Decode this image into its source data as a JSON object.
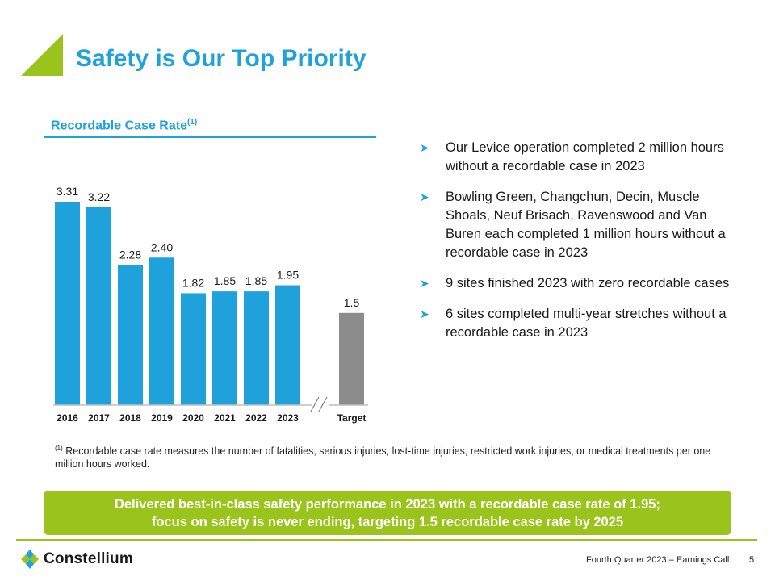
{
  "header": {
    "title": "Safety is Our Top Priority",
    "colors": {
      "brand_blue": "#1fa1dc",
      "brand_green": "#9ac31c",
      "target_gray": "#8c8c8c"
    }
  },
  "chart_title": {
    "text": "Recordable Case Rate",
    "superscript": "(1)"
  },
  "chart_data": {
    "type": "bar",
    "title": "Recordable Case Rate",
    "categories": [
      "2016",
      "2017",
      "2018",
      "2019",
      "2020",
      "2021",
      "2022",
      "2023",
      "Target"
    ],
    "values": [
      3.31,
      3.22,
      2.28,
      2.4,
      1.82,
      1.85,
      1.85,
      1.95,
      1.5
    ],
    "value_labels": [
      "3.31",
      "3.22",
      "2.28",
      "2.40",
      "1.82",
      "1.85",
      "1.85",
      "1.95",
      "1.5"
    ],
    "series_colors": [
      "#1fa1dc",
      "#1fa1dc",
      "#1fa1dc",
      "#1fa1dc",
      "#1fa1dc",
      "#1fa1dc",
      "#1fa1dc",
      "#1fa1dc",
      "#8c8c8c"
    ],
    "axis_break_after": "2023",
    "xlabel": "",
    "ylabel": "",
    "ylim": [
      0,
      3.31
    ],
    "grid": false
  },
  "bullets": [
    {
      "icon": "arrow-bullet-icon",
      "text": "Our Levice operation completed 2 million hours without a recordable case in 2023"
    },
    {
      "icon": "arrow-bullet-icon",
      "text": "Bowling Green, Changchun, Decin, Muscle Shoals, Neuf Brisach, Ravenswood and Van Buren each completed 1 million hours without a recordable case in 2023"
    },
    {
      "icon": "arrow-bullet-icon",
      "text": "9 sites finished 2023 with zero recordable cases"
    },
    {
      "icon": "arrow-bullet-icon",
      "text": "6 sites completed multi-year stretches without a recordable case in 2023"
    }
  ],
  "footnote": {
    "marker": "(1)",
    "text": " Recordable case rate measures the number of fatalities, serious injuries, lost-time injuries, restricted work injuries, or medical treatments per one million hours worked."
  },
  "banner": {
    "line1": "Delivered best-in-class safety performance in 2023 with a recordable case rate of 1.95;",
    "line2": "focus on safety is never ending, targeting 1.5 recordable case rate by 2025"
  },
  "footer": {
    "logo_text": "Constellium",
    "logo_icon": "constellium-logo-icon",
    "event": "Fourth Quarter 2023 – Earnings Call",
    "page": "5"
  }
}
